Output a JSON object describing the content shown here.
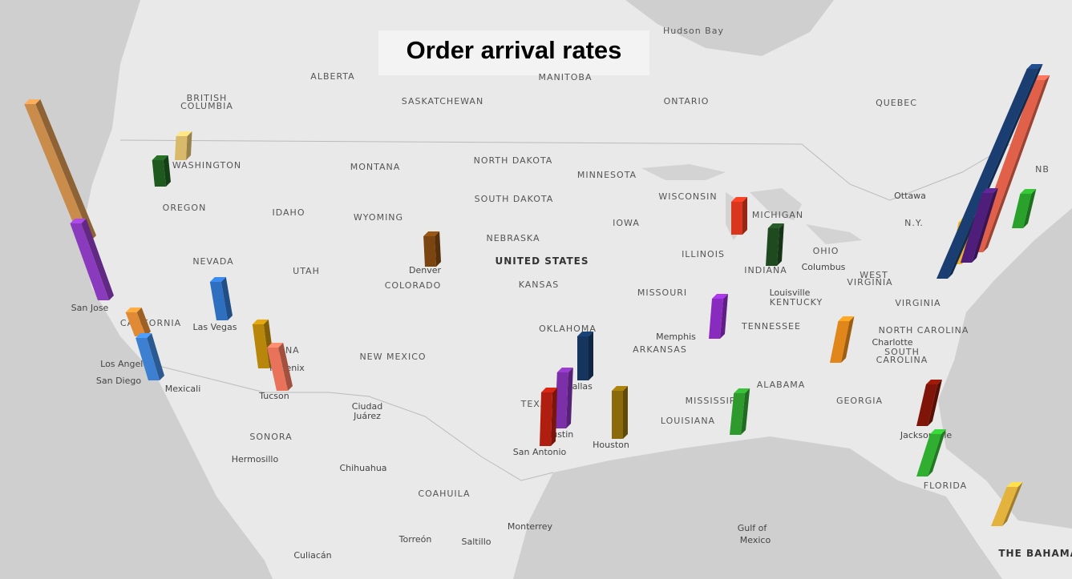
{
  "title": "Order arrival rates",
  "labels": [
    "Hudson Bay",
    "ALBERTA",
    "MANITOBA",
    "SASKATCHEWAN",
    "ONTARIO",
    "QUEBEC",
    "BRITISH",
    "COLUMBIA",
    "WASHINGTON",
    "MONTANA",
    "NORTH DAKOTA",
    "MINNESOTA",
    "OREGON",
    "IDAHO",
    "WYOMING",
    "SOUTH DAKOTA",
    "WISCONSIN",
    "MICHIGAN",
    "IOWA",
    "NEBRASKA",
    "UNITED STATES",
    "Ottawa",
    "NEVADA",
    "UTAH",
    "Denver",
    "COLORADO",
    "KANSAS",
    "ILLINOIS",
    "INDIANA",
    "OHIO",
    "Columbus",
    "MISSOURI",
    "WEST",
    "VIRGINIA",
    "Louisville",
    "KENTUCKY",
    "VIRGINIA",
    "San Jose",
    "Las Vegas",
    "CALIFORNIA",
    "OKLAHOMA",
    "Memphis",
    "TENNESSEE",
    "NORTH CAROLINA",
    "Charlotte",
    "SOUTH",
    "CAROLINA",
    "ARKANSAS",
    "NEW MEXICO",
    "ONA",
    "Phoenix",
    "Los Angeles",
    "San Diego",
    "Mexicali",
    "Tucson",
    "Dallas",
    "ALABAMA",
    "GEORGIA",
    "MISSISSIPPI",
    "LOUISIANA",
    "TEXAS",
    "Ciudad",
    "Juárez",
    "Austin",
    "San Antonio",
    "Houston",
    "Jacksonville",
    "FLORIDA",
    "SONORA",
    "Hermosillo",
    "Chihuahua",
    "COAHUILA",
    "Monterrey",
    "Torreón",
    "Saltillo",
    "Gulf of",
    "Mexico",
    "Culiacán",
    "THE BAHAMAS",
    "N.Y.",
    "NB"
  ],
  "bars": [
    {
      "color": "#d9b96a",
      "value": 30
    },
    {
      "color": "#1e5a1e",
      "value": 33
    },
    {
      "color": "#c98c4a",
      "value": 170
    },
    {
      "color": "#8a3bbd",
      "value": 96
    },
    {
      "color": "#2f6fc0",
      "value": 48
    },
    {
      "color": "#e08a35",
      "value": 30
    },
    {
      "color": "#3d7fd0",
      "value": 53
    },
    {
      "color": "#b8860b",
      "value": 55
    },
    {
      "color": "#e8735a",
      "value": 54
    },
    {
      "color": "#7a4510",
      "value": 38
    },
    {
      "color": "#d9361e",
      "value": 41
    },
    {
      "color": "#1f4a1f",
      "value": 47
    },
    {
      "color": "#8a2bc0",
      "value": 50
    },
    {
      "color": "#e0861a",
      "value": 52
    },
    {
      "color": "#15355e",
      "value": 55
    },
    {
      "color": "#7b2fa8",
      "value": 70
    },
    {
      "color": "#b01e10",
      "value": 67
    },
    {
      "color": "#8a6a0a",
      "value": 60
    },
    {
      "color": "#2e9a2e",
      "value": 52
    },
    {
      "color": "#7e1508",
      "value": 52
    },
    {
      "color": "#2fae2f",
      "value": 53
    },
    {
      "color": "#e3b33e",
      "value": 49
    },
    {
      "color": "#2aa12a",
      "value": 43
    },
    {
      "color": "#f0b030",
      "value": 53
    },
    {
      "color": "#e0604a",
      "value": 215
    },
    {
      "color": "#1a3e72",
      "value": 262
    },
    {
      "color": "#4e1e7a",
      "value": 87
    }
  ]
}
